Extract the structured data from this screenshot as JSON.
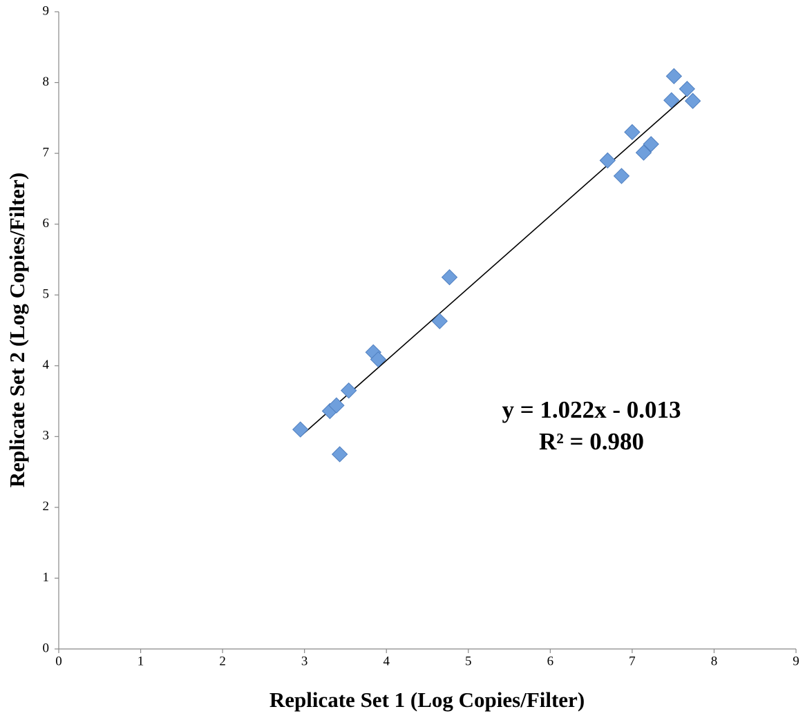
{
  "chart_data": {
    "type": "scatter",
    "x_label": "Replicate Set 1 (Log Copies/Filter)",
    "y_label": "Replicate Set 2 (Log Copies/Filter)",
    "annotations": [
      "y = 1.022x - 0.013",
      "R² = 0.980"
    ],
    "series": [
      {
        "color": "#6f9fdc",
        "x": [
          2.95,
          3.31,
          3.39,
          3.43,
          3.54,
          3.84,
          3.9,
          4.65,
          4.77,
          6.7,
          6.87,
          7.0,
          7.14,
          7.23,
          7.48,
          7.51,
          7.67,
          7.74
        ],
        "values": [
          3.1,
          3.36,
          3.44,
          2.75,
          3.65,
          4.19,
          4.09,
          4.63,
          5.25,
          6.9,
          6.68,
          7.3,
          7.01,
          7.13,
          7.75,
          8.09,
          7.91,
          7.74
        ]
      }
    ],
    "trendline": {
      "slope": 1.022,
      "intercept": -0.013,
      "color": "#000000"
    },
    "xlim": [
      0,
      9
    ],
    "xticks": [
      0,
      1,
      2,
      3,
      4,
      5,
      6,
      7,
      8,
      9
    ],
    "ylim": [
      0,
      9
    ],
    "yticks": [
      0,
      1,
      2,
      3,
      4,
      5,
      6,
      7,
      8,
      9
    ],
    "grid": false
  }
}
